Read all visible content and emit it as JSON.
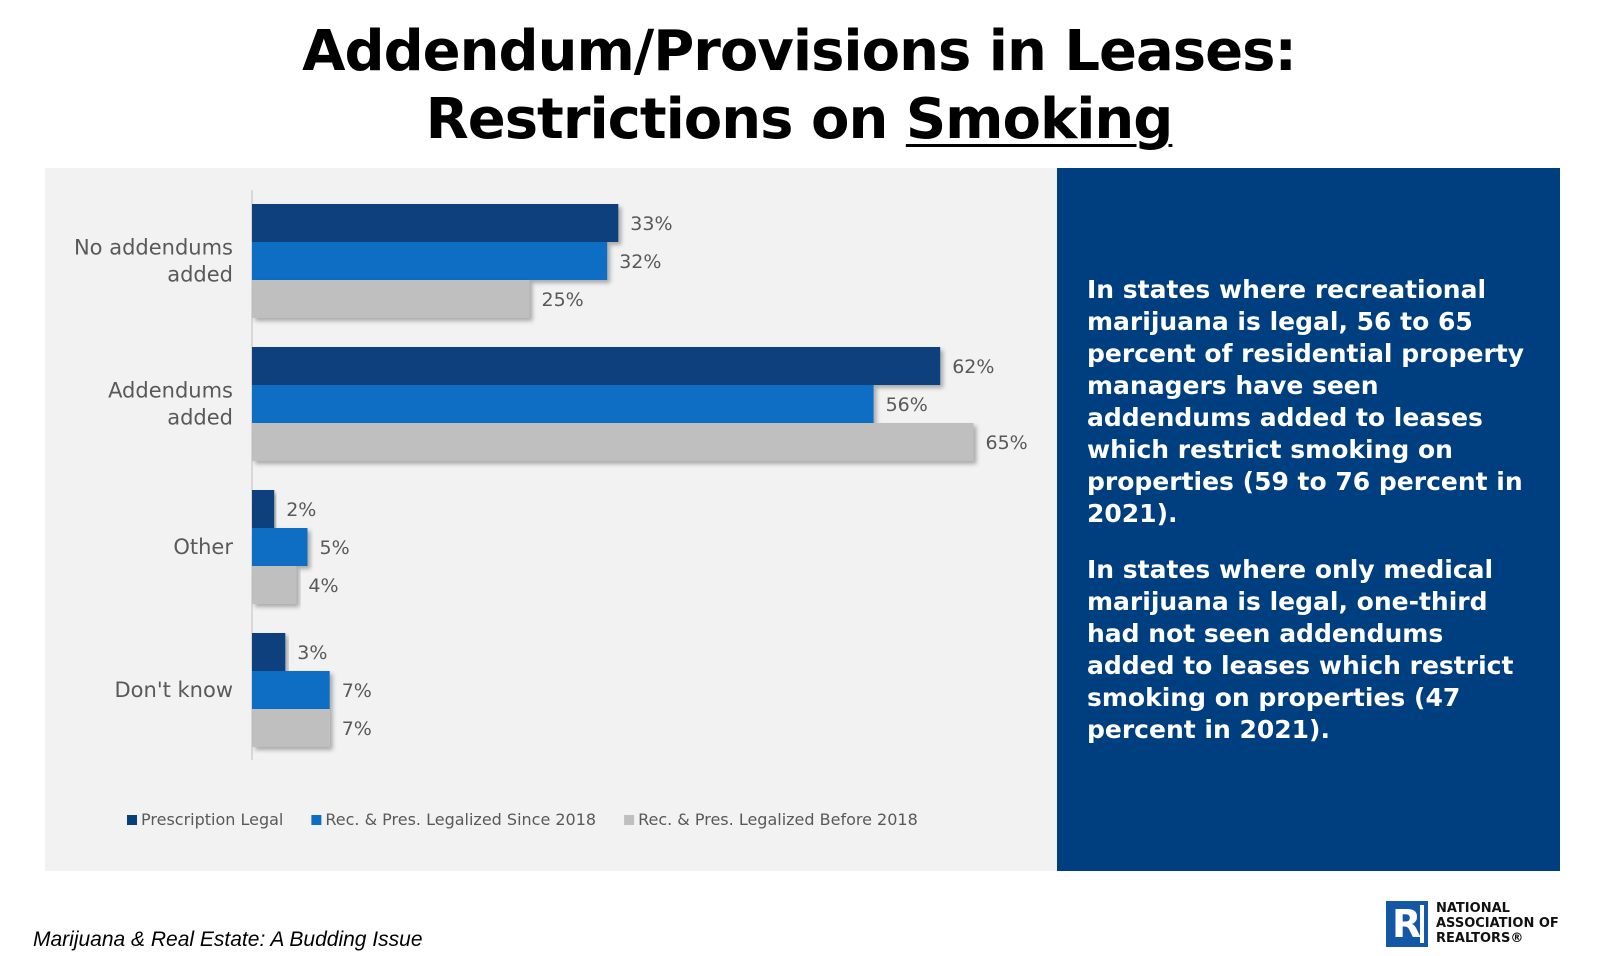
{
  "title": {
    "line1": "Addendum/Provisions in Leases:",
    "line2_prefix": "Restrictions on ",
    "line2_underlined": "Smoking"
  },
  "chart_data": {
    "type": "bar",
    "orientation": "horizontal",
    "categories": [
      "No addendums\nadded",
      "Addendums\nadded",
      "Other",
      "Don't know"
    ],
    "series": [
      {
        "name": "Prescription Legal",
        "color": "#073f7b",
        "values": [
          33,
          62,
          2,
          3
        ]
      },
      {
        "name": "Rec. & Pres. Legalized Since 2018",
        "color": "#0b6ec3",
        "values": [
          32,
          56,
          5,
          7
        ]
      },
      {
        "name": "Rec. & Pres. Legalized Before 2018",
        "color": "#bfbfbf",
        "values": [
          25,
          65,
          4,
          7
        ]
      }
    ],
    "value_suffix": "%",
    "xlim": [
      0,
      100
    ],
    "grid": false,
    "legend_position": "bottom"
  },
  "info_panel": {
    "paragraph1": "In states where recreational marijuana is legal, 56 to 65 percent of residential property managers have seen addendums added to leases which restrict smoking on properties (59 to 76 percent in 2021).",
    "paragraph2": "In states where only medical marijuana is legal, one-third had not seen addendums added to leases which restrict smoking on properties (47 percent in 2021)."
  },
  "footer": {
    "publication_title": "Marijuana & Real Estate: A Budding Issue"
  },
  "logo": {
    "mark": "R",
    "text": "NATIONAL\nASSOCIATION OF\nREALTORS®",
    "color": "#1457a6"
  }
}
